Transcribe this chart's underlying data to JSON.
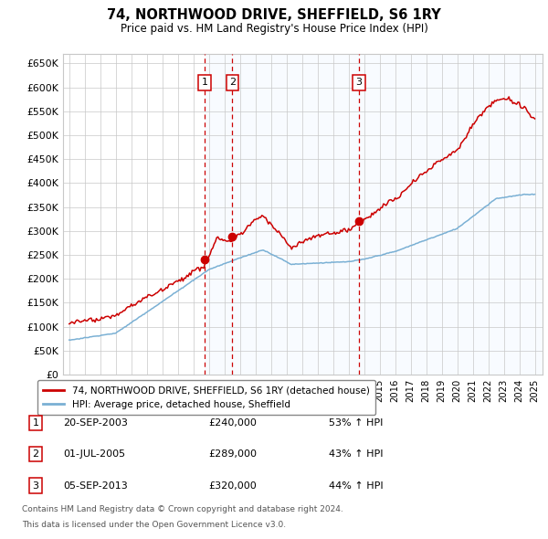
{
  "title": "74, NORTHWOOD DRIVE, SHEFFIELD, S6 1RY",
  "subtitle": "Price paid vs. HM Land Registry's House Price Index (HPI)",
  "ylim": [
    0,
    670000
  ],
  "yticks": [
    0,
    50000,
    100000,
    150000,
    200000,
    250000,
    300000,
    350000,
    400000,
    450000,
    500000,
    550000,
    600000,
    650000
  ],
  "ytick_labels": [
    "£0",
    "£50K",
    "£100K",
    "£150K",
    "£200K",
    "£250K",
    "£300K",
    "£350K",
    "£400K",
    "£450K",
    "£500K",
    "£550K",
    "£600K",
    "£650K"
  ],
  "sale_dates_decimal": [
    2003.72,
    2005.5,
    2013.67
  ],
  "sale_prices": [
    240000,
    289000,
    320000
  ],
  "sale_labels": [
    "1",
    "2",
    "3"
  ],
  "sale_info": [
    {
      "num": "1",
      "date": "20-SEP-2003",
      "price": "£240,000",
      "hpi": "53% ↑ HPI"
    },
    {
      "num": "2",
      "date": "01-JUL-2005",
      "price": "£289,000",
      "hpi": "43% ↑ HPI"
    },
    {
      "num": "3",
      "date": "05-SEP-2013",
      "price": "£320,000",
      "hpi": "44% ↑ HPI"
    }
  ],
  "red_line_color": "#cc0000",
  "blue_line_color": "#7ab0d4",
  "shade_color": "#ddeeff",
  "grid_color": "#c8c8c8",
  "background_color": "#ffffff",
  "legend_label_red": "74, NORTHWOOD DRIVE, SHEFFIELD, S6 1RY (detached house)",
  "legend_label_blue": "HPI: Average price, detached house, Sheffield",
  "footnote1": "Contains HM Land Registry data © Crown copyright and database right 2024.",
  "footnote2": "This data is licensed under the Open Government Licence v3.0."
}
